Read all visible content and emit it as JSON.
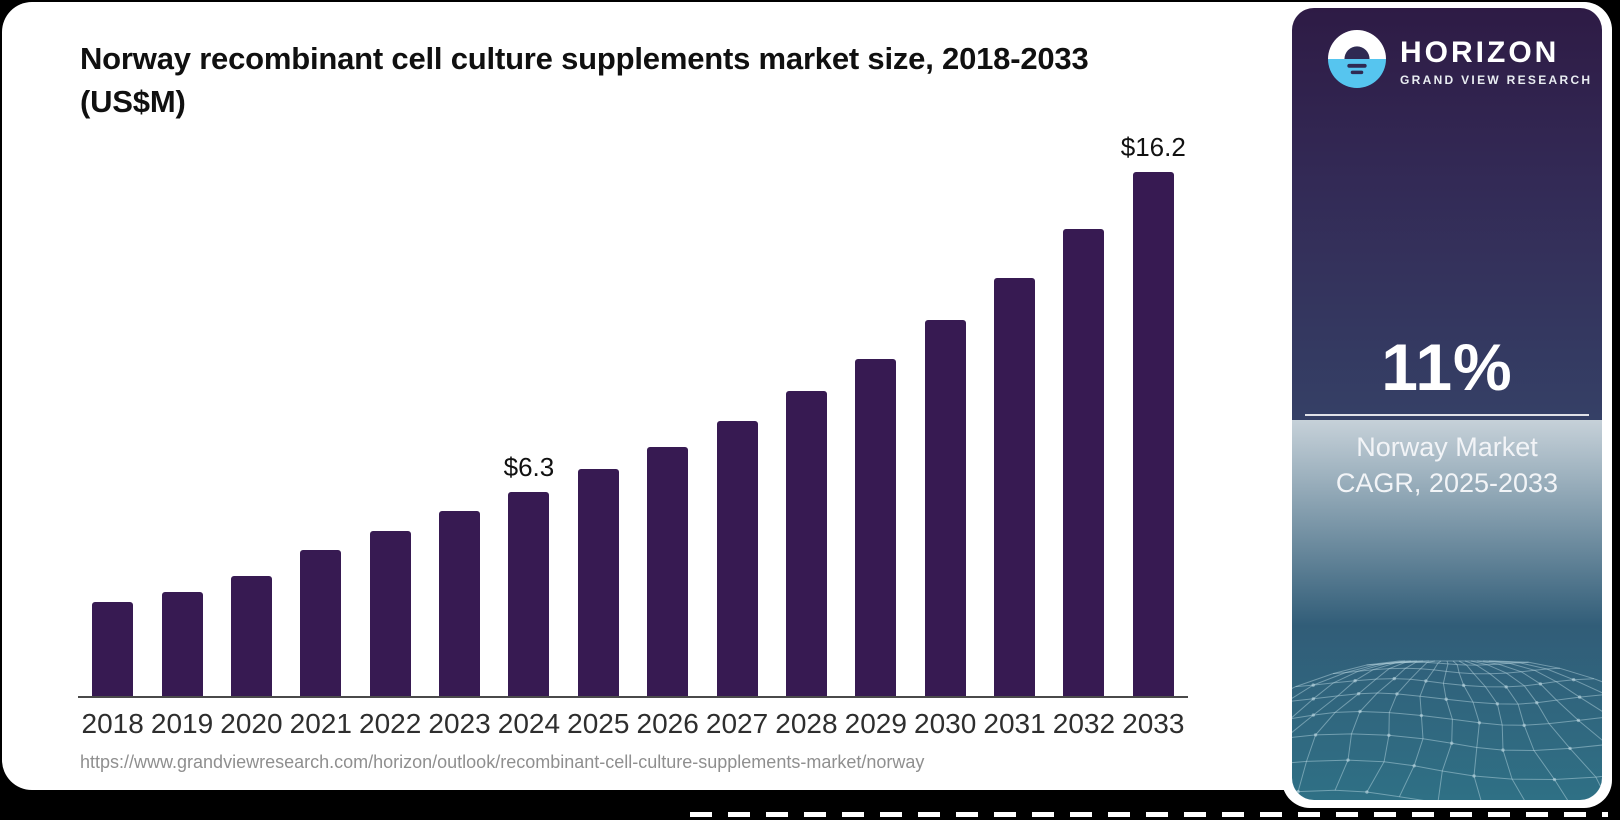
{
  "header": {
    "title": "Norway recombinant cell culture supplements market size, 2018-2033 (US$M)"
  },
  "chart_data": {
    "type": "bar",
    "title": "Norway recombinant cell culture supplements market size, 2018-2033 (US$M)",
    "unit": "US$M",
    "categories": [
      "2018",
      "2019",
      "2020",
      "2021",
      "2022",
      "2023",
      "2024",
      "2025",
      "2026",
      "2027",
      "2028",
      "2029",
      "2030",
      "2031",
      "2032",
      "2033"
    ],
    "values": [
      2.9,
      3.2,
      3.7,
      4.5,
      5.1,
      5.7,
      6.3,
      7.0,
      7.7,
      8.5,
      9.4,
      10.4,
      11.6,
      12.9,
      14.4,
      16.2
    ],
    "point_labels": [
      "",
      "",
      "",
      "",
      "",
      "",
      "$6.3",
      "",
      "",
      "",
      "",
      "",
      "",
      "",
      "",
      "$16.2"
    ],
    "xlabel": "",
    "ylabel": "",
    "ylim": [
      0,
      17.3
    ],
    "grid": false,
    "legend": false,
    "bar_color": "#371A52"
  },
  "footer": {
    "source_url": "https://www.grandviewresearch.com/horizon/outlook/recombinant-cell-culture-supplements-market/norway"
  },
  "sidebar": {
    "brand": "HORIZON",
    "brand_sub": "GRAND VIEW RESEARCH",
    "stat_value": "11%",
    "stat_caption_line1": "Norway Market",
    "stat_caption_line2": "CAGR, 2025-2033",
    "colors": {
      "logo_blue": "#56C5EF",
      "logo_dark": "#2F2A52",
      "panel_top": "#2E1B45",
      "panel_bottom": "#2F7085",
      "bar": "#371A52"
    }
  }
}
